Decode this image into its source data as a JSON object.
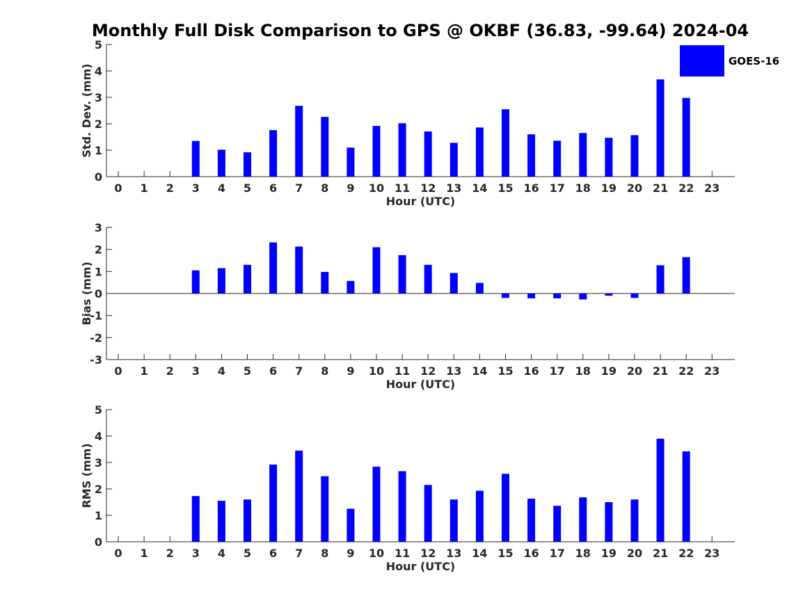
{
  "figure_title": "Monthly Full Disk Comparison to GPS @ OKBF (36.83, -99.64) 2024-04",
  "legend": {
    "label": "GOES-16",
    "color": "#0000ff"
  },
  "colors": {
    "bar": "#0000ff",
    "axis": "#262626",
    "title": "#000000"
  },
  "chart_data": [
    {
      "type": "bar",
      "title": "Monthly Full Disk Comparison to GPS @ OKBF (36.83, -99.64) 2024-04",
      "xlabel": "Hour (UTC)",
      "ylabel": "Std. Dev. (mm)",
      "ylim": [
        0,
        5
      ],
      "yticks": [
        0,
        1,
        2,
        3,
        4,
        5
      ],
      "categories": [
        "0",
        "1",
        "2",
        "3",
        "4",
        "5",
        "6",
        "7",
        "8",
        "9",
        "10",
        "11",
        "12",
        "13",
        "14",
        "15",
        "16",
        "17",
        "18",
        "19",
        "20",
        "21",
        "22",
        "23"
      ],
      "series": [
        {
          "name": "GOES-16",
          "values": [
            null,
            null,
            null,
            1.35,
            1.02,
            0.92,
            1.76,
            2.68,
            2.26,
            1.1,
            1.92,
            2.02,
            1.71,
            1.28,
            1.86,
            2.55,
            1.6,
            1.36,
            1.65,
            1.47,
            1.57,
            3.68,
            2.98,
            null
          ]
        }
      ]
    },
    {
      "type": "bar",
      "xlabel": "Hour (UTC)",
      "ylabel": "Bias (mm)",
      "ylim": [
        -3,
        3
      ],
      "yticks": [
        -3,
        -2,
        -1,
        0,
        1,
        2,
        3
      ],
      "categories": [
        "0",
        "1",
        "2",
        "3",
        "4",
        "5",
        "6",
        "7",
        "8",
        "9",
        "10",
        "11",
        "12",
        "13",
        "14",
        "15",
        "16",
        "17",
        "18",
        "19",
        "20",
        "21",
        "22",
        "23"
      ],
      "series": [
        {
          "name": "GOES-16",
          "values": [
            null,
            null,
            null,
            1.05,
            1.15,
            1.3,
            2.32,
            2.13,
            0.98,
            0.57,
            2.1,
            1.74,
            1.3,
            0.93,
            0.48,
            -0.2,
            -0.22,
            -0.22,
            -0.27,
            -0.1,
            -0.2,
            1.28,
            1.65,
            null
          ]
        }
      ]
    },
    {
      "type": "bar",
      "xlabel": "Hour (UTC)",
      "ylabel": "RMS (mm)",
      "ylim": [
        0,
        5
      ],
      "yticks": [
        0,
        1,
        2,
        3,
        4,
        5
      ],
      "categories": [
        "0",
        "1",
        "2",
        "3",
        "4",
        "5",
        "6",
        "7",
        "8",
        "9",
        "10",
        "11",
        "12",
        "13",
        "14",
        "15",
        "16",
        "17",
        "18",
        "19",
        "20",
        "21",
        "22",
        "23"
      ],
      "series": [
        {
          "name": "GOES-16",
          "values": [
            null,
            null,
            null,
            1.73,
            1.55,
            1.6,
            2.92,
            3.45,
            2.48,
            1.25,
            2.84,
            2.67,
            2.15,
            1.6,
            1.93,
            2.57,
            1.63,
            1.36,
            1.68,
            1.5,
            1.6,
            3.9,
            3.42,
            null
          ]
        }
      ]
    }
  ]
}
